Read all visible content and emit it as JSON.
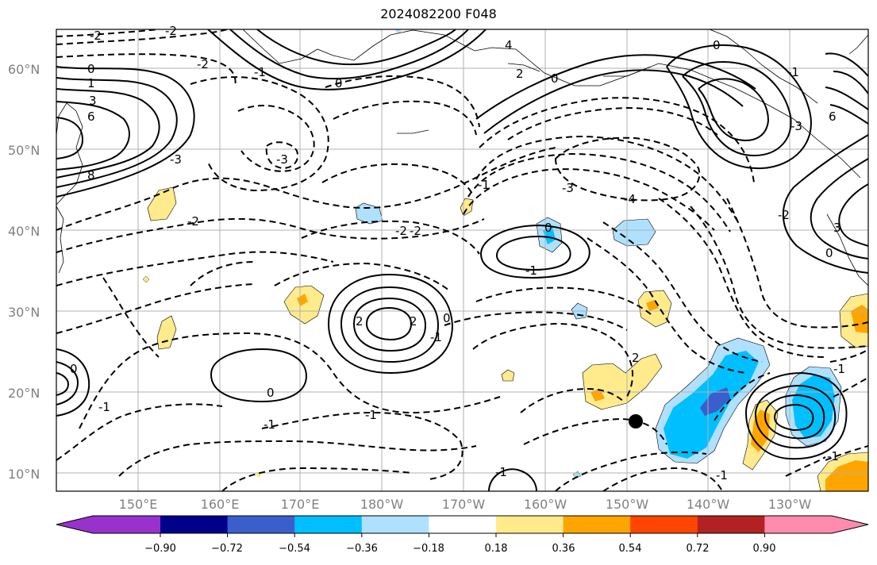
{
  "title": "2024082200 F048",
  "lat_labels": [
    "60°N",
    "50°N",
    "40°N",
    "30°N",
    "20°N",
    "10°N"
  ],
  "lon_labels": [
    "150°E",
    "160°E",
    "170°E",
    "180°W",
    "170°W",
    "160°W",
    "150°W",
    "140°W",
    "130°W"
  ],
  "colorbar": {
    "tick_labels": [
      "−0.90",
      "−0.72",
      "−0.54",
      "−0.36",
      "−0.18",
      "0.18",
      "0.36",
      "0.54",
      "0.72",
      "0.90"
    ],
    "colors": [
      "#9932cc",
      "#00008b",
      "#3a5fcd",
      "#00bfff",
      "#afe1ff",
      "#ffffff",
      "#ffeb8c",
      "#ffa500",
      "#ff4500",
      "#b22222",
      "#ff8caf"
    ]
  },
  "contour_labels": [
    "-2",
    "-2",
    "-2",
    "-1",
    "0",
    "1",
    "3",
    "6",
    "8",
    "-3",
    "-3",
    "-2",
    "-2",
    "-3",
    "-4",
    "0",
    "-1",
    "2",
    "2",
    "-1",
    "0",
    "0",
    "-1",
    "-2",
    "3",
    "0",
    "2",
    "4",
    "6",
    "-3",
    "-1",
    "0",
    "-1",
    "0",
    "-1",
    "0",
    "-1",
    "-1",
    "2",
    "-2",
    "0",
    "-1",
    "-1",
    "-1"
  ],
  "marker": {
    "label": "storm-center",
    "lon": -148.2,
    "lat": 16.5
  }
}
